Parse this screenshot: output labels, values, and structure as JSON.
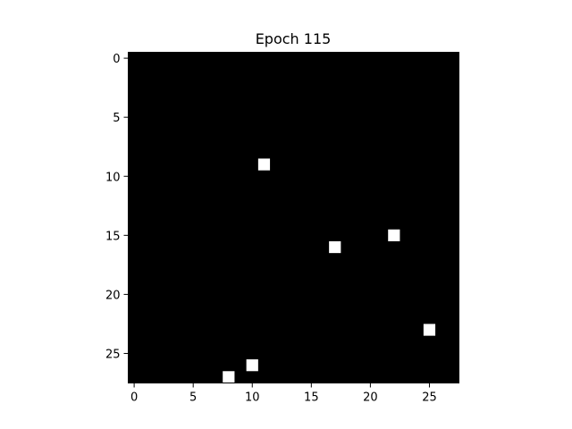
{
  "chart_data": {
    "type": "heatmap",
    "title": "Epoch 115",
    "xlabel": "",
    "ylabel": "",
    "grid": false,
    "colormap": "gray",
    "size": [
      28,
      28
    ],
    "xlim": [
      -0.5,
      27.5
    ],
    "ylim": [
      27.5,
      -0.5
    ],
    "xticks": [
      0,
      5,
      10,
      15,
      20,
      25
    ],
    "yticks": [
      0,
      5,
      10,
      15,
      20,
      25
    ],
    "background_value": 0,
    "on_value": 1,
    "on_pixels": [
      {
        "x": 11,
        "y": 9
      },
      {
        "x": 22,
        "y": 15
      },
      {
        "x": 17,
        "y": 16
      },
      {
        "x": 25,
        "y": 23
      },
      {
        "x": 10,
        "y": 26
      },
      {
        "x": 8,
        "y": 27
      }
    ],
    "colors": {
      "background": "#000000",
      "on": "#ffffff",
      "axis": "#000000"
    }
  }
}
